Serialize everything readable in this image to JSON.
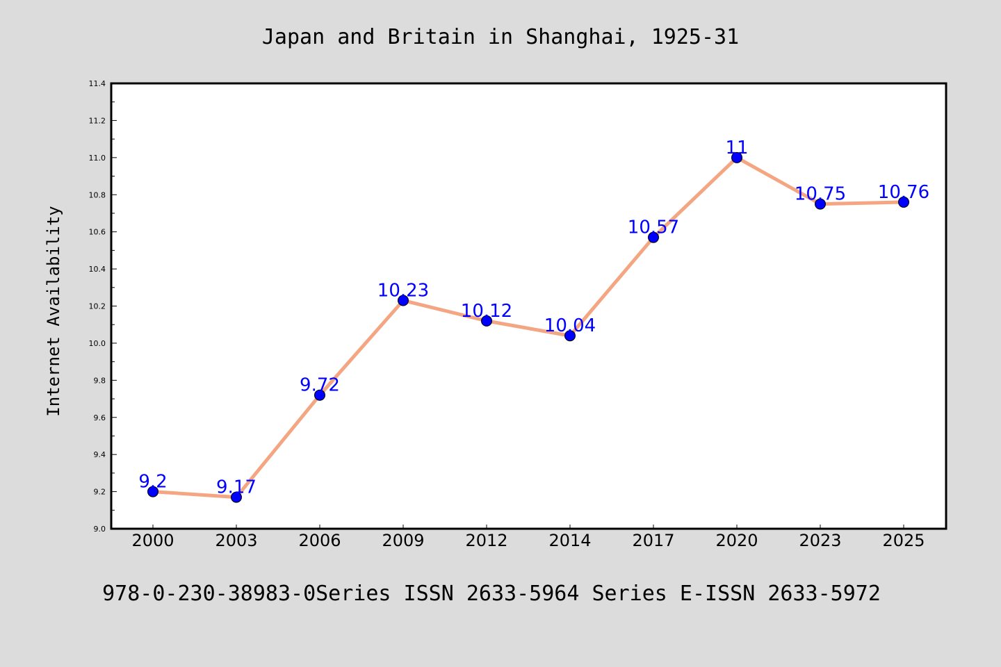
{
  "chart_data": {
    "type": "line",
    "title": "Japan and Britain in Shanghai, 1925-31",
    "xlabel": "",
    "ylabel": "Internet Availability",
    "categories": [
      "2000",
      "2003",
      "2006",
      "2009",
      "2012",
      "2014",
      "2017",
      "2020",
      "2023",
      "2025"
    ],
    "series": [
      {
        "values": [
          9.2,
          9.17,
          9.72,
          10.23,
          10.12,
          10.04,
          10.57,
          11,
          10.75,
          10.76
        ],
        "labels": [
          "9.2",
          "9.17",
          "9.72",
          "10.23",
          "10.12",
          "10.04",
          "10.57",
          "11",
          "10.75",
          "10.76"
        ],
        "line_color": "#f4a582",
        "marker_color": "#0000ff"
      }
    ],
    "ylim": [
      9.0,
      11.4
    ],
    "yticks": [
      "9.0",
      "9.2",
      "9.4",
      "9.6",
      "9.8",
      "10.0",
      "10.2",
      "10.4",
      "10.6",
      "10.8",
      "11.0",
      "11.2",
      "11.4"
    ],
    "grid": false,
    "legend": "none",
    "data_label_color": "#0000ff"
  },
  "footer": {
    "text": "978-0-230-38983-0Series ISSN 2633-5964 Series E-ISSN 2633-5972"
  },
  "colors": {
    "background": "#dcdcdc",
    "plot_background": "#ffffff",
    "line": "#f4a582",
    "marker": "#0000ff",
    "data_label": "#0000ff"
  }
}
